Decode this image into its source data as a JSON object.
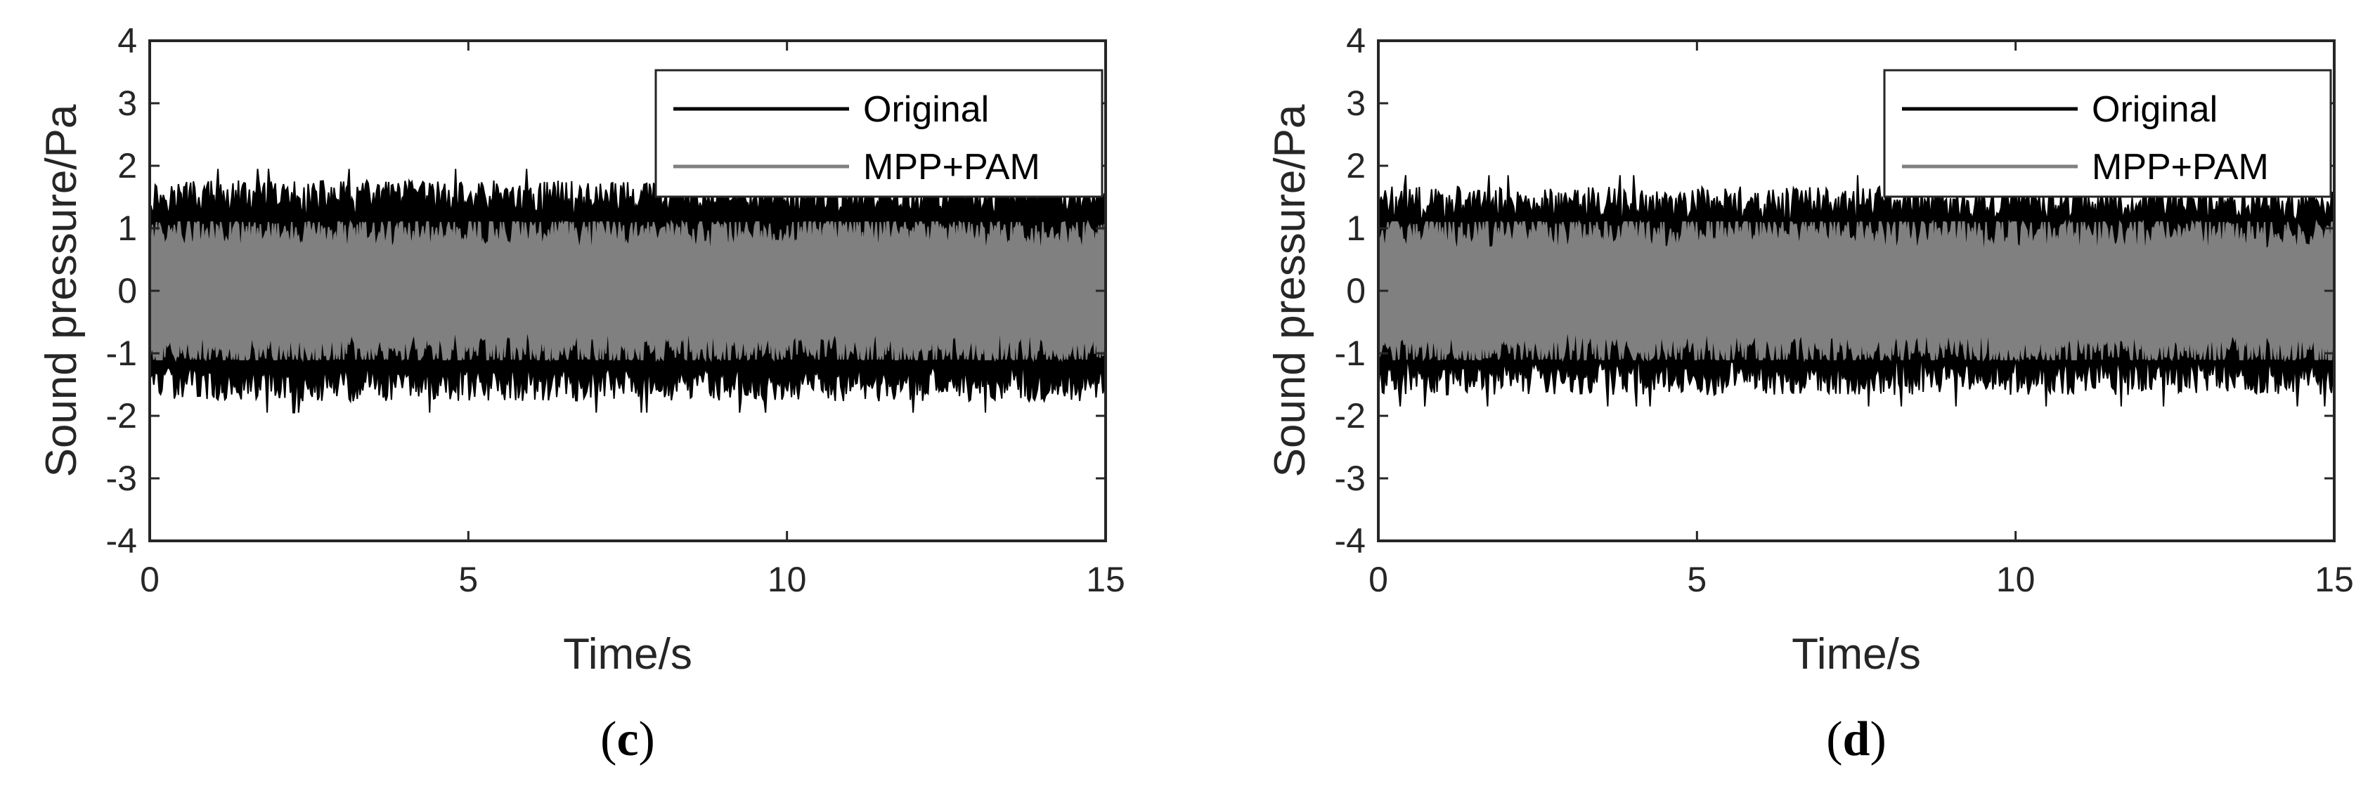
{
  "chart_data": [
    {
      "type": "line",
      "panel_label": {
        "open": "(",
        "letter": "c",
        "close": ")"
      },
      "xlabel": "Time/s",
      "ylabel": "Sound pressure/Pa",
      "xlim": [
        0,
        15
      ],
      "ylim": [
        -4,
        4
      ],
      "xticks": [
        "0",
        "5",
        "10",
        "15"
      ],
      "yticks": [
        "4",
        "3",
        "2",
        "1",
        "0",
        "-1",
        "-2",
        "-3",
        "-4"
      ],
      "legend_position": "top-right",
      "grid": false,
      "series": [
        {
          "name": "Original",
          "color": "#000000",
          "amplitude_peak_pa": 1.95,
          "amplitude_typical_pa": 1.5
        },
        {
          "name": "MPP+PAM",
          "color": "#808080",
          "amplitude_peak_pa": 1.1,
          "amplitude_typical_pa": 0.95
        }
      ]
    },
    {
      "type": "line",
      "panel_label": {
        "open": "(",
        "letter": "d",
        "close": ")"
      },
      "xlabel": "Time/s",
      "ylabel": "Sound pressure/Pa",
      "xlim": [
        0,
        15
      ],
      "ylim": [
        -4,
        4
      ],
      "xticks": [
        "0",
        "5",
        "10",
        "15"
      ],
      "yticks": [
        "4",
        "3",
        "2",
        "1",
        "0",
        "-1",
        "-2",
        "-3",
        "-4"
      ],
      "legend_position": "top-right",
      "grid": false,
      "series": [
        {
          "name": "Original",
          "color": "#000000",
          "amplitude_peak_pa": 1.85,
          "amplitude_typical_pa": 1.4
        },
        {
          "name": "MPP+PAM",
          "color": "#808080",
          "amplitude_peak_pa": 1.1,
          "amplitude_typical_pa": 0.95
        }
      ]
    }
  ]
}
